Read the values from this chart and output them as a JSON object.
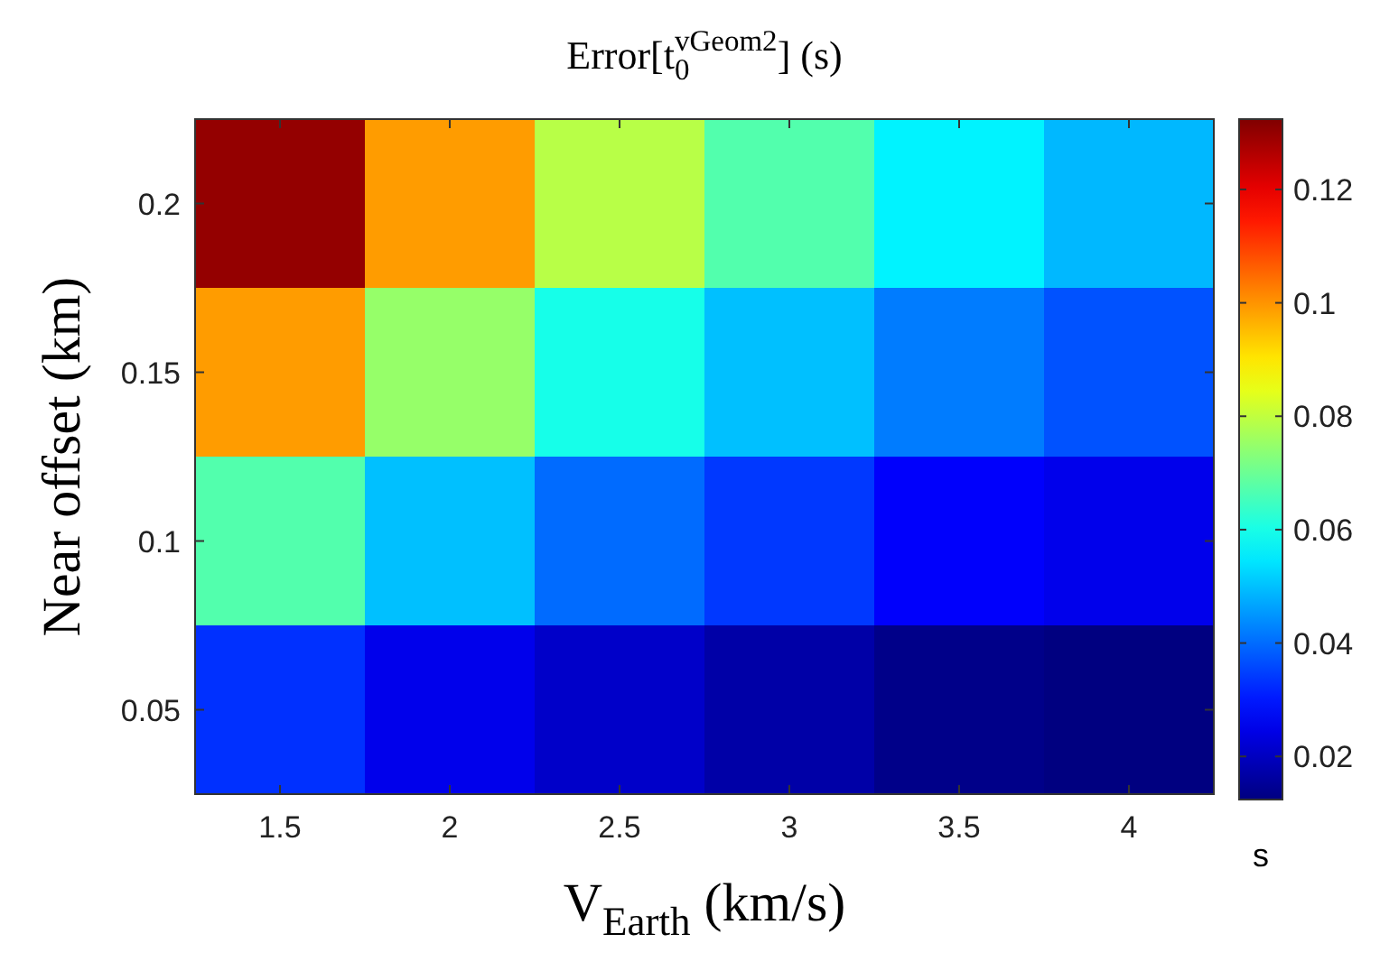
{
  "chart_data": {
    "type": "heatmap",
    "title": "Error[t$_{0}$$^{vGeom2}$] (s)",
    "xlabel": "V$_{Earth}$ (km/s)",
    "ylabel": "Near offset (km)",
    "clabel": "s",
    "categories": [
      "1.5",
      "2",
      "2.5",
      "3",
      "3.5",
      "4"
    ],
    "y_categories": [
      "0.2",
      "0.15",
      "0.1",
      "0.05"
    ],
    "cells": [
      [
        0.13,
        0.099,
        0.079,
        0.067,
        0.056,
        0.049
      ],
      [
        0.099,
        0.075,
        0.06,
        0.05,
        0.042,
        0.037
      ],
      [
        0.067,
        0.05,
        0.04,
        0.034,
        0.027,
        0.025
      ],
      [
        0.033,
        0.025,
        0.021,
        0.017,
        0.0135,
        0.0124
      ]
    ],
    "clim": [
      0.0124,
      0.1324
    ],
    "cticks": [
      0.02,
      0.04,
      0.06,
      0.08,
      0.1,
      0.12
    ]
  }
}
